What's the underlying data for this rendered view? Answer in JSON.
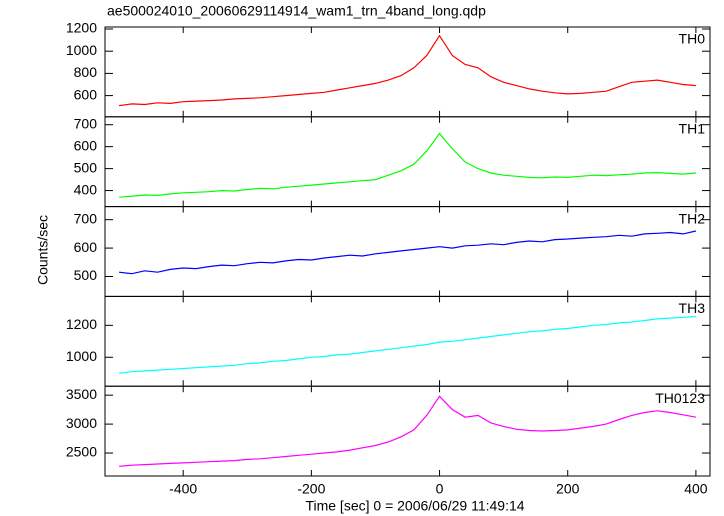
{
  "chart_data": {
    "type": "line",
    "title": "ae500024010_20060629114914_wam1_trn_4band_long.qdp",
    "x_label": "Time [sec] 0 = 2006/06/29 11:49:14",
    "y_label": "Counts/sec",
    "xlim": [
      -522,
      422
    ],
    "xticks": [
      -400,
      -200,
      0,
      200,
      400
    ],
    "x": [
      -500,
      -480,
      -460,
      -440,
      -420,
      -400,
      -380,
      -360,
      -340,
      -320,
      -300,
      -280,
      -260,
      -240,
      -220,
      -200,
      -180,
      -160,
      -140,
      -120,
      -100,
      -80,
      -60,
      -40,
      -20,
      0,
      20,
      40,
      60,
      80,
      100,
      120,
      140,
      160,
      180,
      200,
      220,
      240,
      260,
      280,
      300,
      320,
      340,
      360,
      380,
      400
    ],
    "series": [
      {
        "name": "TH0",
        "color": "#ff0000",
        "ylim": [
          409,
          1218
        ],
        "yticks": [
          600,
          800,
          1000,
          1200
        ],
        "values": [
          510,
          525,
          520,
          535,
          530,
          545,
          550,
          555,
          560,
          570,
          575,
          580,
          590,
          600,
          610,
          620,
          630,
          650,
          670,
          690,
          710,
          740,
          780,
          850,
          960,
          1140,
          960,
          880,
          850,
          770,
          720,
          690,
          660,
          640,
          625,
          615,
          620,
          630,
          640,
          680,
          720,
          730,
          740,
          720,
          700,
          690
        ]
      },
      {
        "name": "TH1",
        "color": "#00ff00",
        "ylim": [
          327,
          736
        ],
        "yticks": [
          400,
          500,
          600,
          700
        ],
        "values": [
          370,
          375,
          380,
          378,
          385,
          390,
          392,
          395,
          400,
          398,
          405,
          410,
          408,
          415,
          420,
          425,
          430,
          435,
          440,
          445,
          450,
          470,
          490,
          520,
          580,
          660,
          590,
          530,
          500,
          480,
          470,
          465,
          460,
          458,
          462,
          460,
          465,
          470,
          468,
          472,
          475,
          480,
          482,
          478,
          475,
          480
        ]
      },
      {
        "name": "TH2",
        "color": "#0000ff",
        "ylim": [
          430,
          746
        ],
        "yticks": [
          500,
          600,
          700
        ],
        "values": [
          515,
          510,
          520,
          515,
          525,
          530,
          528,
          535,
          540,
          538,
          545,
          550,
          548,
          555,
          560,
          558,
          565,
          570,
          575,
          572,
          580,
          585,
          590,
          595,
          600,
          605,
          600,
          608,
          610,
          615,
          612,
          620,
          625,
          622,
          630,
          632,
          635,
          638,
          640,
          645,
          642,
          650,
          652,
          655,
          650,
          660
        ]
      },
      {
        "name": "TH3",
        "color": "#00ffff",
        "ylim": [
          819,
          1381
        ],
        "yticks": [
          1000,
          1200
        ],
        "values": [
          900,
          910,
          915,
          920,
          925,
          930,
          935,
          940,
          945,
          950,
          960,
          965,
          975,
          980,
          990,
          1000,
          1005,
          1015,
          1020,
          1030,
          1040,
          1050,
          1060,
          1070,
          1080,
          1095,
          1100,
          1110,
          1120,
          1130,
          1140,
          1150,
          1160,
          1165,
          1175,
          1180,
          1190,
          1200,
          1205,
          1215,
          1220,
          1230,
          1240,
          1245,
          1250,
          1255
        ]
      },
      {
        "name": "TH0123",
        "color": "#ff00ff",
        "ylim": [
          2103,
          3655
        ],
        "yticks": [
          2500,
          3000,
          3500
        ],
        "values": [
          2270,
          2290,
          2300,
          2310,
          2320,
          2330,
          2340,
          2350,
          2360,
          2370,
          2390,
          2400,
          2420,
          2440,
          2460,
          2480,
          2500,
          2520,
          2550,
          2590,
          2630,
          2690,
          2780,
          2900,
          3150,
          3480,
          3250,
          3120,
          3150,
          3020,
          2960,
          2910,
          2890,
          2880,
          2890,
          2900,
          2930,
          2960,
          3000,
          3080,
          3150,
          3200,
          3230,
          3200,
          3160,
          3120
        ]
      }
    ]
  }
}
